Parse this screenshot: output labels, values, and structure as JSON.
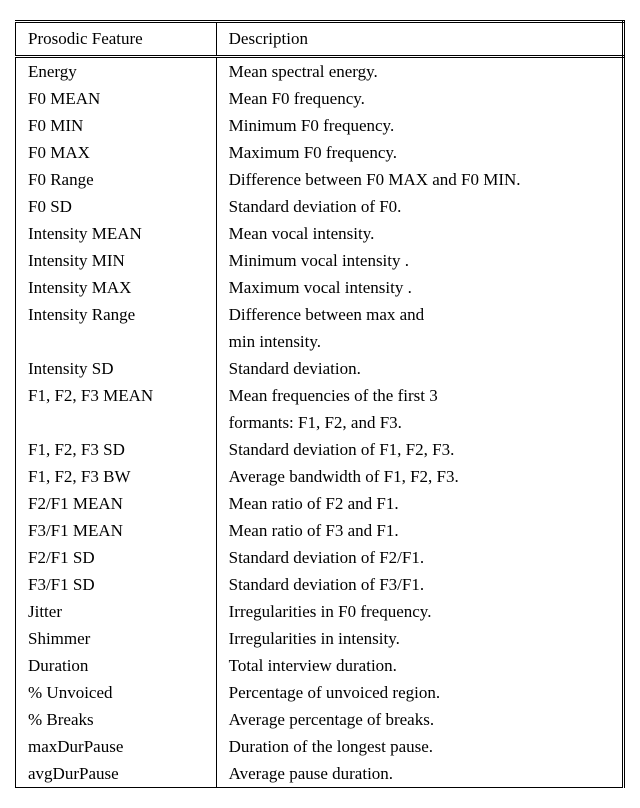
{
  "table": {
    "columns": [
      "Prosodic Feature",
      "Description"
    ],
    "col_widths": [
      "33%",
      "67%"
    ],
    "header_fontsize": 17,
    "cell_fontsize": 17,
    "font_family": "Palatino Linotype, Book Antiqua, Palatino, serif",
    "text_color": "#000000",
    "background_color": "#ffffff",
    "border_color": "#000000",
    "outer_border_style": "double",
    "inner_border_style": "solid",
    "rows": [
      [
        "Energy",
        "Mean spectral energy."
      ],
      [
        "F0 MEAN",
        "Mean F0 frequency."
      ],
      [
        "F0 MIN",
        "Minimum F0 frequency."
      ],
      [
        "F0 MAX",
        "Maximum F0 frequency."
      ],
      [
        "F0 Range",
        "Difference between F0 MAX and F0 MIN."
      ],
      [
        "F0 SD",
        "Standard deviation of F0."
      ],
      [
        "Intensity MEAN",
        "Mean vocal intensity."
      ],
      [
        "Intensity MIN",
        "Minimum vocal intensity ."
      ],
      [
        "Intensity MAX",
        "Maximum vocal intensity ."
      ],
      [
        "Intensity Range",
        "Difference between max and"
      ],
      [
        "",
        "min intensity."
      ],
      [
        "Intensity SD",
        "Standard deviation."
      ],
      [
        "F1, F2, F3 MEAN",
        "Mean frequencies of the first 3"
      ],
      [
        "",
        "formants: F1, F2, and F3."
      ],
      [
        "F1, F2, F3 SD",
        "Standard deviation of F1, F2, F3."
      ],
      [
        "F1, F2, F3 BW",
        "Average bandwidth of F1, F2, F3."
      ],
      [
        "F2/F1 MEAN",
        "Mean ratio of F2 and F1."
      ],
      [
        "F3/F1 MEAN",
        "Mean ratio of F3 and F1."
      ],
      [
        "F2/F1 SD",
        "Standard deviation of F2/F1."
      ],
      [
        "F3/F1 SD",
        "Standard deviation of F3/F1."
      ],
      [
        "Jitter",
        "Irregularities in F0 frequency."
      ],
      [
        "Shimmer",
        "Irregularities in intensity."
      ],
      [
        "Duration",
        "Total interview duration."
      ],
      [
        "% Unvoiced",
        "Percentage of unvoiced region."
      ],
      [
        "% Breaks",
        "Average percentage of breaks."
      ],
      [
        "maxDurPause",
        "Duration of the longest pause."
      ],
      [
        "avgDurPause",
        "Average pause duration."
      ]
    ]
  }
}
